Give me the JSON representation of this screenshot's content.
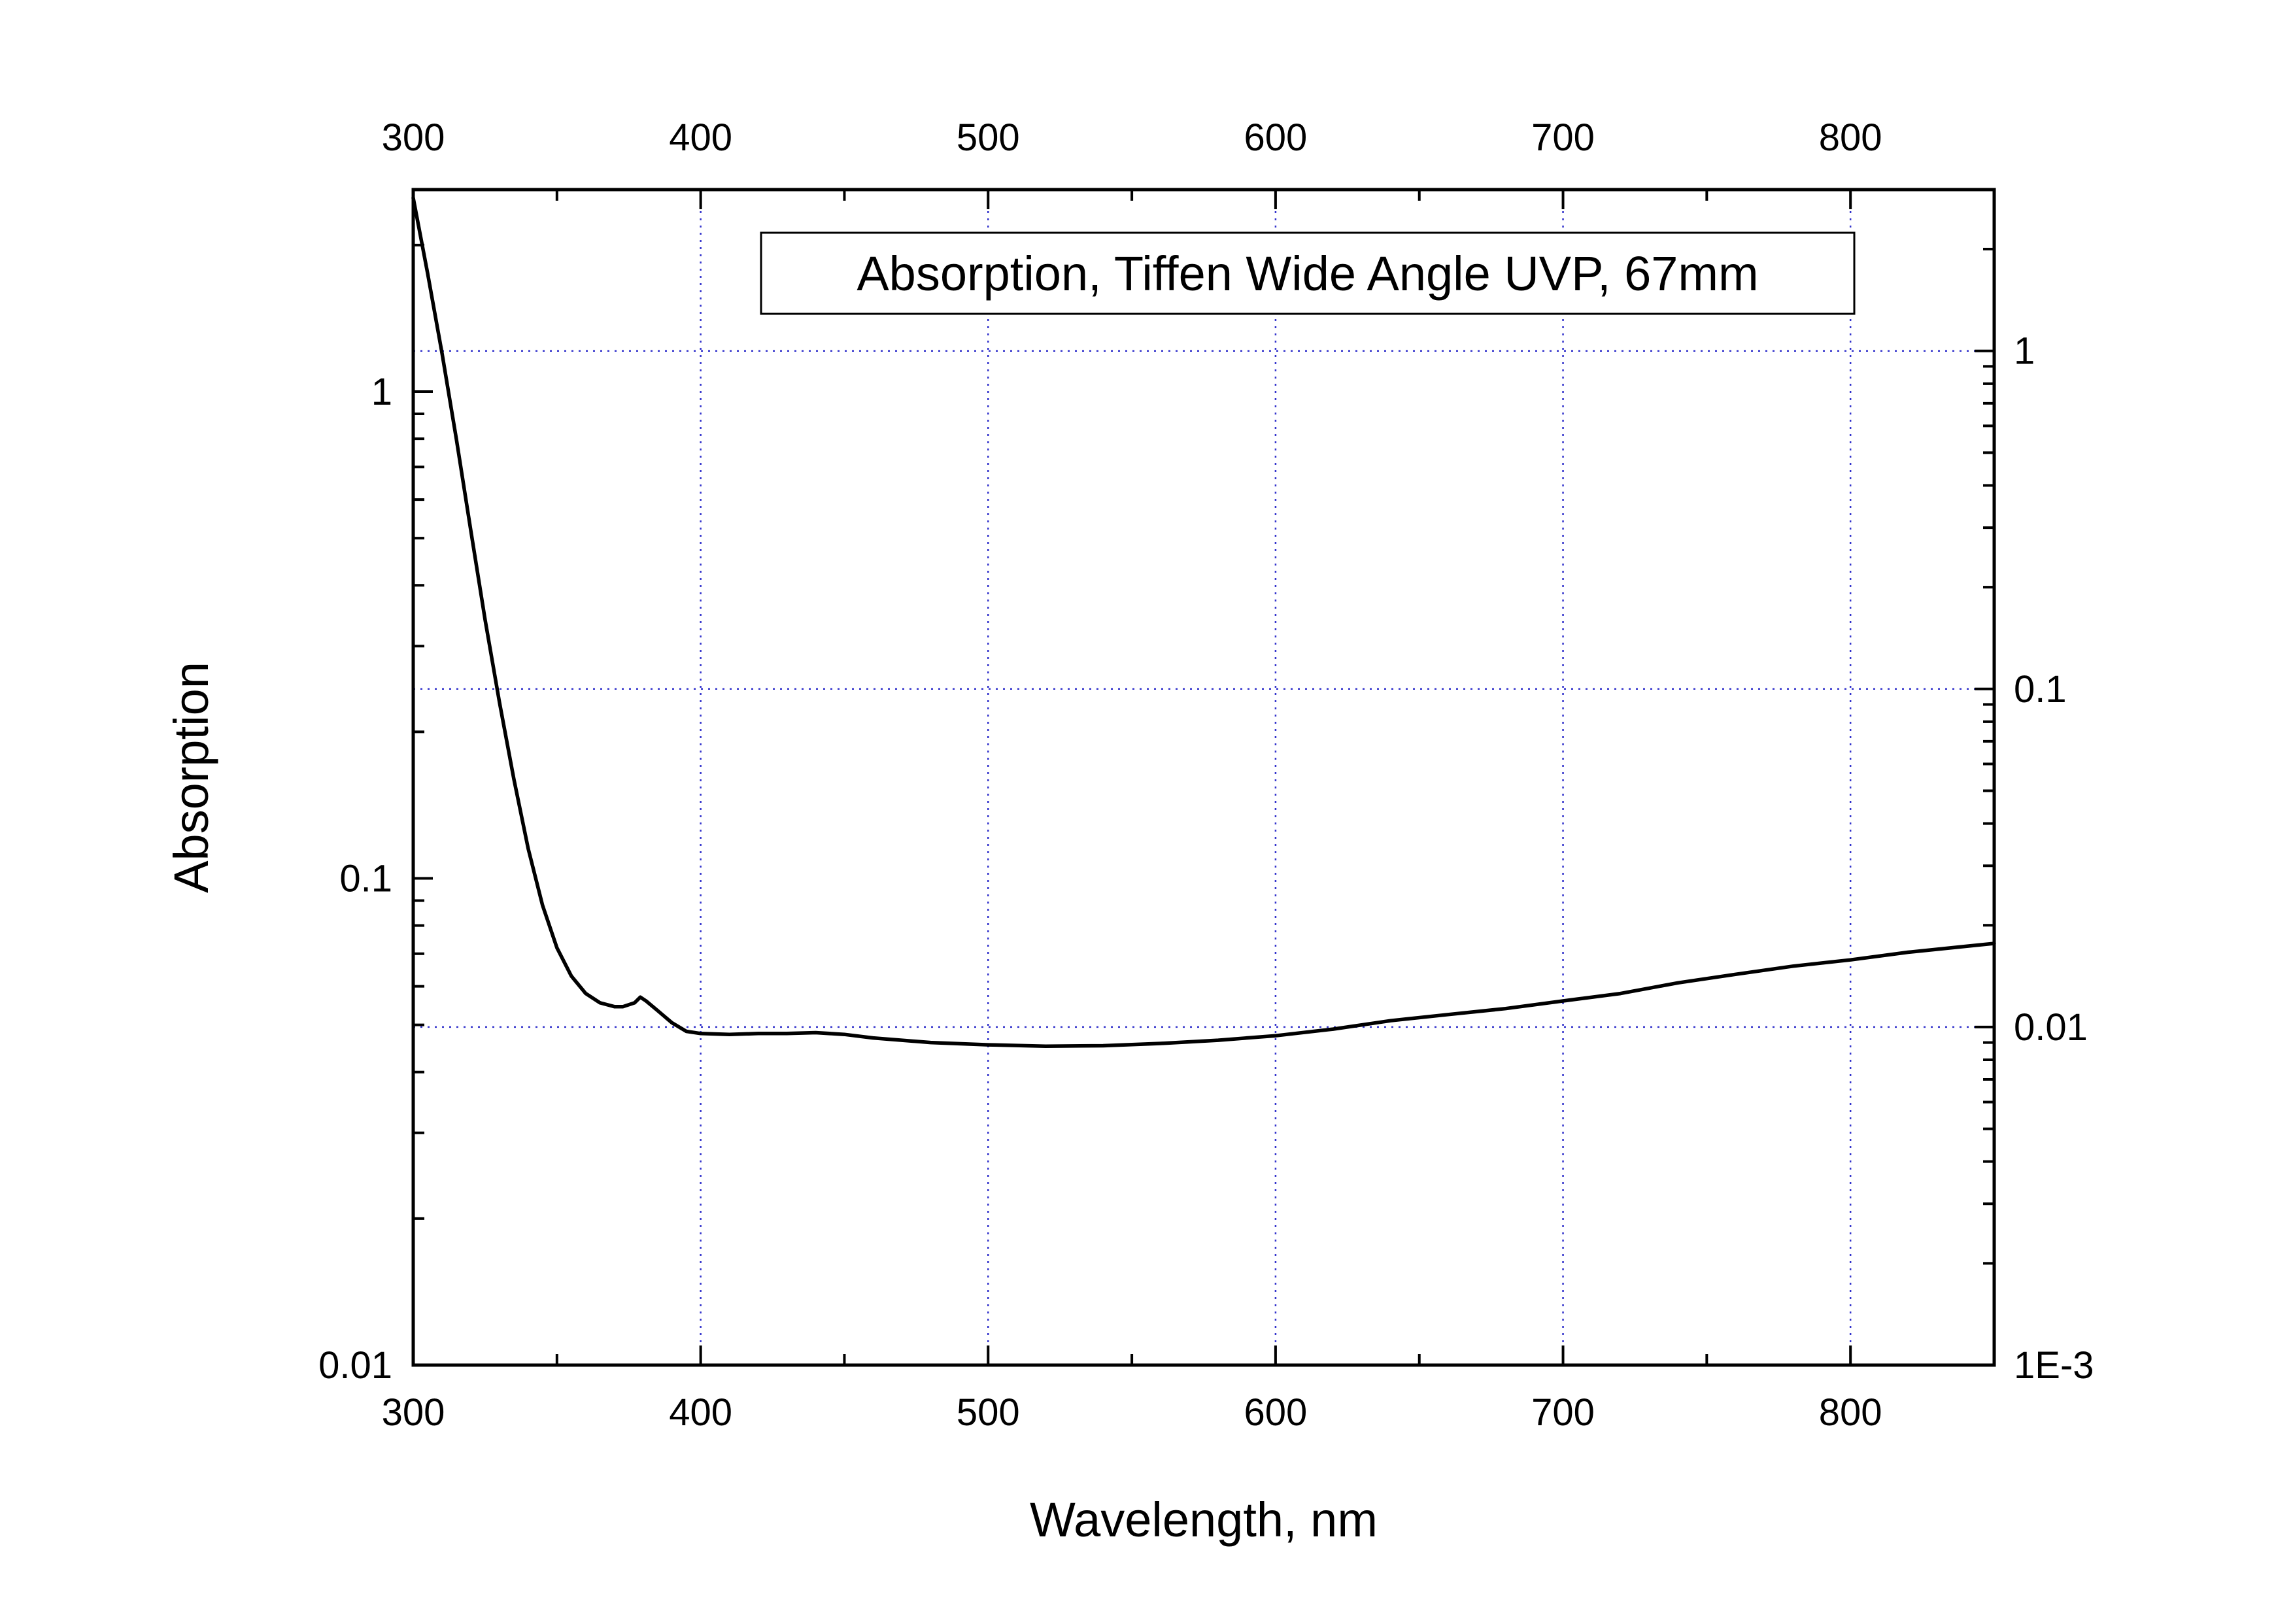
{
  "chart_data": {
    "type": "line",
    "title": "",
    "legend_text": "Absorption, Tiffen Wide Angle UVP, 67mm",
    "legend_placement": "top-center",
    "xlabel": "Wavelength, nm",
    "ylabel": "Absorption",
    "xlim": [
      300,
      850
    ],
    "ylim": [
      0.01,
      2.6
    ],
    "y_scale": "log",
    "x_ticks": [
      300,
      400,
      500,
      600,
      700,
      800
    ],
    "x_tick_labels": [
      "300",
      "400",
      "500",
      "600",
      "700",
      "800"
    ],
    "x_top_ticks": [
      300,
      400,
      500,
      600,
      700,
      800
    ],
    "x_top_tick_labels": [
      "300",
      "400",
      "500",
      "600",
      "700",
      "800"
    ],
    "y_ticks": [
      0.01,
      0.1,
      1
    ],
    "y_tick_labels": [
      "0.01",
      "0.1",
      "1"
    ],
    "y_right_ticks": [
      0.001,
      0.01,
      0.1,
      1
    ],
    "y_right_tick_labels": [
      "1E-3",
      "0.01",
      "0.1",
      "1"
    ],
    "y_right_lim": [
      0.001,
      3.0
    ],
    "grid": true,
    "line_color": "#000000",
    "grid_color": "#3333cc",
    "series": [
      {
        "x": [
          300,
          305,
          310,
          315,
          320,
          325,
          330,
          335,
          340,
          345,
          350,
          355,
          360,
          365,
          370,
          373,
          377,
          379,
          381,
          385,
          390,
          395,
          400,
          410,
          420,
          430,
          440,
          450,
          460,
          480,
          500,
          520,
          540,
          560,
          580,
          600,
          620,
          640,
          660,
          680,
          700,
          720,
          740,
          760,
          780,
          800,
          820,
          840,
          850
        ],
        "y": [
          2.5,
          1.75,
          1.2,
          0.8,
          0.52,
          0.34,
          0.23,
          0.16,
          0.115,
          0.088,
          0.072,
          0.063,
          0.058,
          0.0555,
          0.0545,
          0.0545,
          0.0555,
          0.057,
          0.056,
          0.0535,
          0.0505,
          0.0485,
          0.048,
          0.0478,
          0.048,
          0.048,
          0.0482,
          0.0478,
          0.047,
          0.046,
          0.0455,
          0.0452,
          0.0453,
          0.0458,
          0.0465,
          0.0475,
          0.049,
          0.051,
          0.0525,
          0.054,
          0.056,
          0.058,
          0.061,
          0.0635,
          0.066,
          0.068,
          0.0705,
          0.0725,
          0.0735
        ]
      }
    ]
  }
}
